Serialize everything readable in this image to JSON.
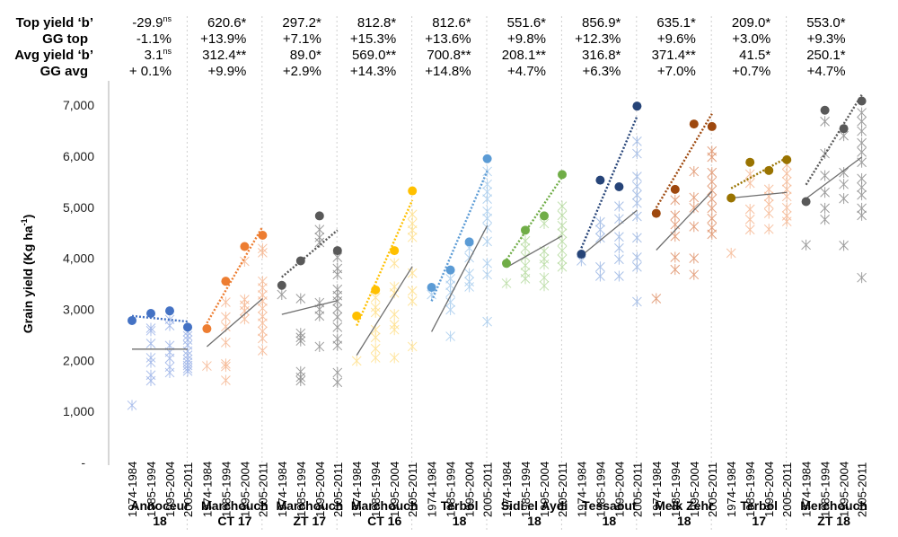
{
  "chart_data": {
    "type": "scatter",
    "title": "",
    "ylabel": "Grain yield (Kg ha-1)",
    "ylabel_main": "Grain yield (Kg ha",
    "ylabel_sup": "-1",
    "ylabel_close": ")",
    "xlabel": "",
    "ylim": [
      0,
      7500
    ],
    "yticks": [
      0,
      1000,
      2000,
      3000,
      4000,
      5000,
      6000,
      7000
    ],
    "ytick_labels": [
      "-",
      "1,000",
      "2,000",
      "3,000",
      "4,000",
      "5,000",
      "6,000",
      "7,000"
    ],
    "periods": [
      "1974-1984",
      "1985-1994",
      "1995-2004",
      "2005-2011"
    ],
    "header_rows": [
      {
        "label": "Top yield ‘b’"
      },
      {
        "label": "GG top"
      },
      {
        "label": "Avg yield ‘b’"
      },
      {
        "label": "GG avg"
      }
    ],
    "groups": [
      {
        "name_line1": "Annoceur",
        "name_line2": "18",
        "color": "#4472c4",
        "scatter_color": "#9db4e8",
        "top_b": "-29.9",
        "top_b_sig": "ns",
        "gg_top": "-1.1%",
        "avg_b": "3.1",
        "avg_b_sig": "ns",
        "gg_avg": "+ 0.1%",
        "top_yield": [
          2780,
          2920,
          2970,
          2650
        ],
        "avg_trend": [
          2220,
          2220
        ],
        "top_trend": [
          2870,
          2760
        ],
        "scatter": [
          [
            1120
          ],
          [
            2630,
            2580,
            2330,
            2050,
            1960,
            1710,
            1600
          ],
          [
            2800,
            2680,
            2290,
            2160,
            2040,
            1870,
            1760
          ],
          [
            2560,
            2480,
            2400,
            2300,
            2180,
            2100,
            2020,
            1960,
            1900,
            1840,
            1790
          ]
        ]
      },
      {
        "name_line1": "Marchouch",
        "name_line2": "CT 17",
        "color": "#ed7d31",
        "scatter_color": "#f6b893",
        "top_b": "620.6",
        "top_b_sig": "*",
        "gg_top": "+13.9%",
        "avg_b": "312.4",
        "avg_b_sig": "**",
        "gg_avg": "+9.9%",
        "top_yield": [
          2620,
          3550,
          4230,
          4450
        ],
        "avg_trend": [
          2270,
          3210
        ],
        "top_trend": [
          2730,
          4620
        ],
        "scatter": [
          [
            1890
          ],
          [
            3140,
            2850,
            2660,
            2350,
            1930,
            1880,
            1610
          ],
          [
            3190,
            3080,
            2970,
            2810,
            3940
          ],
          [
            4190,
            4110,
            3550,
            3420,
            3280,
            3160,
            3020,
            2860,
            2730,
            2570,
            2430,
            2190
          ]
        ]
      },
      {
        "name_line1": "Marchouch",
        "name_line2": "ZT 17",
        "color": "#595959",
        "scatter_color": "#8c8c8c",
        "top_b": "297.2",
        "top_b_sig": "*",
        "gg_top": "+7.1%",
        "avg_b": "89.0",
        "avg_b_sig": "*",
        "gg_avg": "+2.9%",
        "top_yield": [
          3470,
          3950,
          4830,
          4150
        ],
        "avg_trend": [
          2900,
          3170
        ],
        "top_trend": [
          3630,
          4550
        ],
        "scatter": [
          [
            3290
          ],
          [
            3210,
            2530,
            2450,
            2380,
            1780,
            1670,
            1600
          ],
          [
            4560,
            4410,
            4310,
            3130,
            3000,
            2870,
            2270
          ],
          [
            4020,
            3800,
            3680,
            3390,
            3270,
            3160,
            3010,
            2850,
            2650,
            2420,
            2290,
            1760,
            1570
          ]
        ]
      },
      {
        "name_line1": "Marchouch",
        "name_line2": "CT 16",
        "color": "#ffc000",
        "scatter_color": "#ffe08a",
        "top_b": "812.8",
        "top_b_sig": "*",
        "gg_top": "+15.3%",
        "avg_b": "569.0",
        "avg_b_sig": "**",
        "gg_avg": "+14.3%",
        "top_yield": [
          2870,
          3380,
          4150,
          5320
        ],
        "avg_trend": [
          2100,
          3840
        ],
        "top_trend": [
          2680,
          5140
        ],
        "scatter": [
          [
            1990
          ],
          [
            3230,
            3040,
            2940,
            2600,
            2450,
            2230,
            2050
          ],
          [
            3900,
            3440,
            3320,
            2900,
            2700,
            2600,
            2050
          ],
          [
            4860,
            4680,
            4550,
            4410,
            3710,
            3360,
            3160,
            2270
          ]
        ]
      },
      {
        "name_line1": "Terbol",
        "name_line2": "18",
        "color": "#5b9bd5",
        "scatter_color": "#a9cdee",
        "top_b": "812.6",
        "top_b_sig": "*",
        "gg_top": "+13.6%",
        "avg_b": "700.8",
        "avg_b_sig": "**",
        "gg_avg": "+14.8%",
        "top_yield": [
          3430,
          3770,
          4320,
          5950
        ],
        "avg_trend": [
          2560,
          4640
        ],
        "top_trend": [
          3160,
          5710
        ],
        "scatter": [
          [
            3290
          ],
          [
            3600,
            3470,
            3330,
            3140,
            2990,
            2470
          ],
          [
            4200,
            4010,
            3700,
            3540,
            3440
          ],
          [
            5700,
            5450,
            5300,
            5160,
            4920,
            4780,
            4600,
            4330,
            3900,
            3680,
            2760
          ]
        ]
      },
      {
        "name_line1": "Sidi el Aydi",
        "name_line2": "18",
        "color": "#70ad47",
        "scatter_color": "#b7dba0",
        "top_b": "551.6",
        "top_b_sig": "*",
        "gg_top": "+9.8%",
        "avg_b": "208.1",
        "avg_b_sig": "**",
        "gg_avg": "+4.7%",
        "top_yield": [
          3900,
          4550,
          4830,
          5640
        ],
        "avg_trend": [
          3820,
          4440
        ],
        "top_trend": [
          3970,
          5590
        ],
        "scatter": [
          [
            3510
          ],
          [
            4340,
            4200,
            4030,
            3860,
            3720,
            3600
          ],
          [
            4680,
            4140,
            3990,
            3880,
            3620,
            3460
          ],
          [
            5020,
            4840,
            4640,
            4490,
            4330,
            4150,
            3980,
            3830
          ]
        ]
      },
      {
        "name_line1": "Tessaout",
        "name_line2": "18",
        "color": "#264478",
        "scatter_color": "#9db8e4",
        "top_b": "856.9",
        "top_b_sig": "*",
        "gg_top": "+12.3%",
        "avg_b": "316.8",
        "avg_b_sig": "*",
        "gg_avg": "+6.3%",
        "top_yield": [
          4080,
          5530,
          5400,
          6980
        ],
        "avg_trend": [
          4050,
          4940
        ],
        "top_trend": [
          4200,
          6780
        ],
        "scatter": [
          [
            3950
          ],
          [
            4710,
            4560,
            4400,
            3830,
            3650
          ],
          [
            5020,
            4770,
            4420,
            4200,
            3980,
            3650
          ],
          [
            6290,
            6050,
            5600,
            5410,
            5240,
            5080,
            4820,
            4400,
            4020,
            3830,
            3150
          ]
        ]
      },
      {
        "name_line1": "Melk Zehr",
        "name_line2": "18",
        "color": "#9e480e",
        "scatter_color": "#e0926a",
        "top_b": "635.1",
        "top_b_sig": "*",
        "gg_top": "+9.6%",
        "avg_b": "371.4",
        "avg_b_sig": "**",
        "gg_avg": "+7.0%",
        "top_yield": [
          4880,
          5350,
          6630,
          6580
        ],
        "avg_trend": [
          4160,
          5310
        ],
        "top_trend": [
          4990,
          6830
        ],
        "scatter": [
          [
            3210
          ],
          [
            5140,
            4840,
            4660,
            4430,
            4020,
            3780
          ],
          [
            5700,
            5190,
            4990,
            4620,
            4000,
            3680
          ],
          [
            6100,
            5980,
            5680,
            5500,
            5330,
            5160,
            4980,
            4780,
            4600,
            4470
          ]
        ]
      },
      {
        "name_line1": "Terbol",
        "name_line2": "17",
        "color": "#997300",
        "scatter_color": "#f6b893",
        "top_b": "209.0",
        "top_b_sig": "*",
        "gg_top": "+3.0%",
        "avg_b": "41.5",
        "avg_b_sig": "*",
        "gg_avg": "+0.7%",
        "top_yield": [
          5180,
          5880,
          5720,
          5930
        ],
        "avg_trend": [
          5180,
          5290
        ],
        "top_trend": [
          5370,
          5970
        ],
        "scatter": [
          [
            4100
          ],
          [
            5650,
            5470,
            4960,
            4760,
            4560
          ],
          [
            5350,
            5210,
            5060,
            4880,
            4570
          ],
          [
            5830,
            5660,
            5500,
            5350,
            5210,
            4990,
            4830,
            4720
          ]
        ]
      },
      {
        "name_line1": "Merchouch",
        "name_line2": "ZT 18",
        "color": "#595959",
        "scatter_color": "#8c8c8c",
        "top_b": "553.0",
        "top_b_sig": "*",
        "gg_top": "+9.3%",
        "avg_b": "250.1",
        "avg_b_sig": "*",
        "gg_avg": "+4.7%",
        "top_yield": [
          5110,
          6900,
          6540,
          7080
        ],
        "avg_trend": [
          5170,
          5980
        ],
        "top_trend": [
          5440,
          7200
        ],
        "scatter": [
          [
            4260
          ],
          [
            6680,
            6050,
            5620,
            5290,
            4980,
            4760
          ],
          [
            6400,
            5680,
            5450,
            5170,
            4250
          ],
          [
            6850,
            6680,
            6490,
            6260,
            6080,
            5880,
            5560,
            5390,
            5240,
            4980,
            4840,
            3620
          ]
        ]
      }
    ]
  }
}
